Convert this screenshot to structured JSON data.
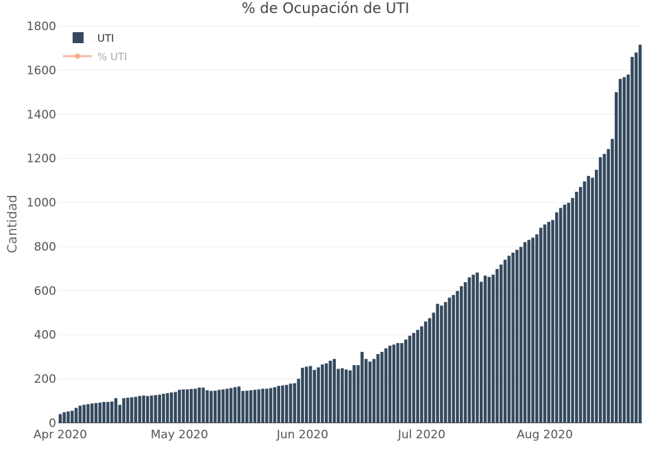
{
  "chart_data": {
    "type": "bar",
    "title": "% de Ocupación de UTI",
    "xlabel": "",
    "ylabel": "Cantidad",
    "ylim": [
      0,
      1800
    ],
    "yticks": [
      0,
      200,
      400,
      600,
      800,
      1000,
      1200,
      1400,
      1600,
      1800
    ],
    "xticks": [
      {
        "label": "Apr 2020",
        "date": "2020-04-01"
      },
      {
        "label": "May 2020",
        "date": "2020-05-01"
      },
      {
        "label": "Jun 2020",
        "date": "2020-06-01"
      },
      {
        "label": "Jul 2020",
        "date": "2020-07-01"
      },
      {
        "label": "Aug 2020",
        "date": "2020-08-01"
      }
    ],
    "x_start": "2020-04-01",
    "grid": true,
    "legend_position": "top-left",
    "legend": [
      {
        "name": "UTI",
        "kind": "bar",
        "color": "#34495e",
        "visible": true
      },
      {
        "name": "% UTI",
        "kind": "line-marker",
        "color": "#f0a582",
        "visible": false
      }
    ],
    "series": [
      {
        "name": "UTI",
        "color": "#34495e",
        "values": [
          40,
          48,
          52,
          55,
          68,
          78,
          82,
          85,
          88,
          90,
          92,
          95,
          95,
          97,
          112,
          82,
          112,
          114,
          116,
          118,
          122,
          124,
          122,
          124,
          126,
          128,
          132,
          135,
          138,
          140,
          150,
          152,
          152,
          154,
          155,
          160,
          160,
          148,
          145,
          146,
          150,
          152,
          155,
          158,
          162,
          165,
          145,
          146,
          148,
          150,
          152,
          155,
          155,
          158,
          162,
          168,
          170,
          172,
          178,
          180,
          200,
          250,
          255,
          258,
          240,
          252,
          265,
          270,
          282,
          290,
          245,
          248,
          242,
          238,
          262,
          262,
          322,
          290,
          278,
          290,
          312,
          322,
          338,
          350,
          355,
          362,
          362,
          378,
          395,
          408,
          422,
          438,
          460,
          475,
          500,
          540,
          532,
          548,
          568,
          580,
          598,
          620,
          638,
          660,
          672,
          682,
          640,
          668,
          662,
          672,
          698,
          718,
          740,
          758,
          772,
          785,
          798,
          820,
          830,
          840,
          855,
          885,
          900,
          912,
          920,
          955,
          975,
          990,
          998,
          1020,
          1048,
          1070,
          1095,
          1120,
          1112,
          1148,
          1205,
          1220,
          1242,
          1288,
          1500,
          1560,
          1568,
          1580,
          1660,
          1680,
          1715
        ]
      }
    ]
  }
}
